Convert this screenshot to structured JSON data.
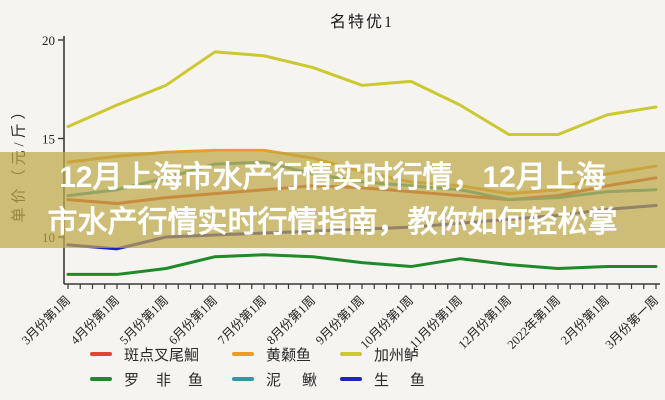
{
  "banner": {
    "line1": "12月上海市水产行情实时行情，12月上海",
    "line2": "市水产行情实时行情指南，教你如何轻松掌"
  },
  "chart_data": {
    "type": "line",
    "title": "名特优1",
    "ylabel": "单价（元/斤）",
    "xlabel": "",
    "grid": false,
    "legend_position": "bottom",
    "ylim": [
      7.5,
      20
    ],
    "y_ticks": [
      20,
      15,
      10
    ],
    "categories": [
      "3月份第1周",
      "4月份第1周",
      "5月份第1周",
      "6月份第1周",
      "7月份第1周",
      "8月份第1周",
      "9月份第1周",
      "10月份第1周",
      "11月份第1周",
      "12月份第1周",
      "2022年第1周",
      "2月份第1周",
      "3月份第一周"
    ],
    "minor_ticks_per_interval": 4,
    "series": [
      {
        "name": "斑点叉尾鮰",
        "color": "#e2452f",
        "values": [
          11.9,
          11.7,
          12.0,
          12.2,
          12.4,
          12.6,
          12.5,
          12.3,
          12.1,
          11.9,
          12.1,
          12.6,
          13.0
        ]
      },
      {
        "name": "黄颡鱼",
        "color": "#ef9b28",
        "values": [
          13.8,
          14.1,
          14.3,
          14.4,
          14.4,
          14.0,
          13.3,
          12.8,
          12.6,
          12.2,
          12.4,
          13.2,
          13.6
        ]
      },
      {
        "name": "加州鲈",
        "color": "#ccc832",
        "values": [
          15.6,
          16.7,
          17.7,
          19.4,
          19.2,
          18.6,
          17.7,
          17.9,
          16.7,
          15.2,
          15.2,
          16.2,
          16.6
        ]
      },
      {
        "name": "罗非鱼",
        "color": "#218a28",
        "values": [
          8.1,
          8.1,
          8.4,
          9.0,
          9.1,
          9.0,
          8.7,
          8.5,
          8.9,
          8.6,
          8.4,
          8.5,
          8.5
        ]
      },
      {
        "name": "泥鳅",
        "color": "#2d99a0",
        "values": [
          12.1,
          12.4,
          13.0,
          13.7,
          13.8,
          13.2,
          12.8,
          12.6,
          12.4,
          11.9,
          12.0,
          12.3,
          12.4
        ]
      },
      {
        "name": "生鱼",
        "color": "#2020c8",
        "values": [
          9.6,
          9.4,
          10.0,
          10.1,
          10.2,
          10.3,
          10.4,
          10.5,
          10.7,
          10.9,
          11.1,
          11.4,
          11.6
        ]
      }
    ]
  }
}
